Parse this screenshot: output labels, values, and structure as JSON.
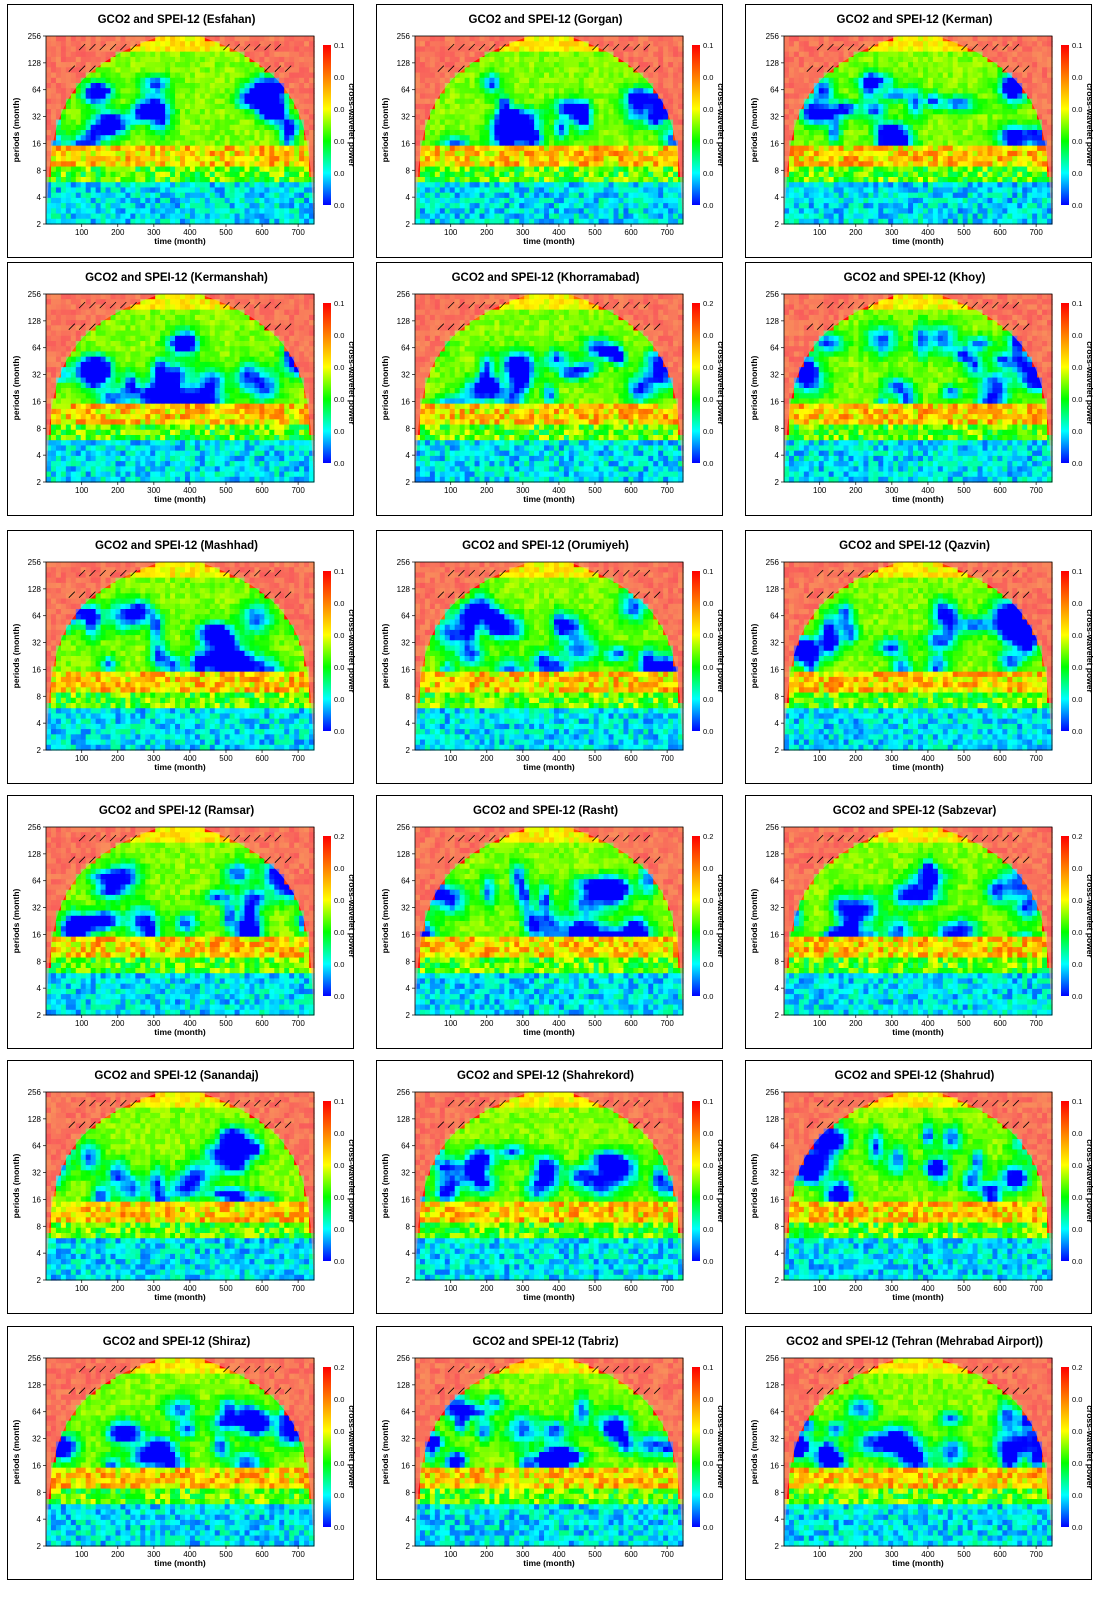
{
  "figure": {
    "charts_common": {
      "type": "heatmap",
      "xlabel": "time (month)",
      "ylabel": "periods (month)",
      "colorbar_label": "cross-wavelet power",
      "x_ticks": [
        "100",
        "200",
        "300",
        "400",
        "500",
        "600",
        "700"
      ],
      "y_ticks": [
        "2",
        "4",
        "8",
        "16",
        "32",
        "64",
        "128",
        "256"
      ],
      "xlim": [
        1,
        744
      ],
      "ylim": [
        2,
        256
      ],
      "y_scale": "log2",
      "colormap": [
        "#0000ff",
        "#00ffff",
        "#00ff00",
        "#ffff00",
        "#ff7f00",
        "#ff0000"
      ],
      "cone_of_influence_color": "#f4a6a6",
      "phase_arrow_color": "#000000"
    }
  },
  "chart_data": [
    {
      "title": "GCO2 and SPEI-12 (Esfahan)",
      "colorbar_ticks": [
        "0.1",
        "0.0",
        "0.0",
        "0.0",
        "0.0",
        "0.0"
      ]
    },
    {
      "title": "GCO2 and SPEI-12 (Gorgan)",
      "colorbar_ticks": [
        "0.1",
        "0.0",
        "0.0",
        "0.0",
        "0.0",
        "0.0"
      ]
    },
    {
      "title": "GCO2 and SPEI-12 (Kerman)",
      "colorbar_ticks": [
        "0.1",
        "0.0",
        "0.0",
        "0.0",
        "0.0",
        "0.0"
      ]
    },
    {
      "title": "GCO2 and SPEI-12 (Kermanshah)",
      "colorbar_ticks": [
        "0.1",
        "0.0",
        "0.0",
        "0.0",
        "0.0",
        "0.0"
      ]
    },
    {
      "title": "GCO2 and SPEI-12 (Khorramabad)",
      "colorbar_ticks": [
        "0.2",
        "0.0",
        "0.0",
        "0.0",
        "0.0",
        "0.0"
      ]
    },
    {
      "title": "GCO2 and SPEI-12 (Khoy)",
      "colorbar_ticks": [
        "0.1",
        "0.0",
        "0.0",
        "0.0",
        "0.0",
        "0.0"
      ]
    },
    {
      "title": "GCO2 and SPEI-12 (Mashhad)",
      "colorbar_ticks": [
        "0.1",
        "0.0",
        "0.0",
        "0.0",
        "0.0",
        "0.0"
      ]
    },
    {
      "title": "GCO2 and SPEI-12 (Orumiyeh)",
      "colorbar_ticks": [
        "0.1",
        "0.0",
        "0.0",
        "0.0",
        "0.0",
        "0.0"
      ]
    },
    {
      "title": "GCO2 and SPEI-12 (Qazvin)",
      "colorbar_ticks": [
        "0.1",
        "0.0",
        "0.0",
        "0.0",
        "0.0",
        "0.0"
      ]
    },
    {
      "title": "GCO2 and SPEI-12 (Ramsar)",
      "colorbar_ticks": [
        "0.2",
        "0.0",
        "0.0",
        "0.0",
        "0.0",
        "0.0"
      ]
    },
    {
      "title": "GCO2 and SPEI-12 (Rasht)",
      "colorbar_ticks": [
        "0.2",
        "0.0",
        "0.0",
        "0.0",
        "0.0",
        "0.0"
      ]
    },
    {
      "title": "GCO2 and SPEI-12 (Sabzevar)",
      "colorbar_ticks": [
        "0.2",
        "0.0",
        "0.0",
        "0.0",
        "0.0",
        "0.0"
      ]
    },
    {
      "title": "GCO2 and SPEI-12 (Sanandaj)",
      "colorbar_ticks": [
        "0.1",
        "0.0",
        "0.0",
        "0.0",
        "0.0",
        "0.0"
      ]
    },
    {
      "title": "GCO2 and SPEI-12 (Shahrekord)",
      "colorbar_ticks": [
        "0.1",
        "0.0",
        "0.0",
        "0.0",
        "0.0",
        "0.0"
      ]
    },
    {
      "title": "GCO2 and SPEI-12 (Shahrud)",
      "colorbar_ticks": [
        "0.1",
        "0.0",
        "0.0",
        "0.0",
        "0.0",
        "0.0"
      ]
    },
    {
      "title": "GCO2 and SPEI-12 (Shiraz)",
      "colorbar_ticks": [
        "0.2",
        "0.0",
        "0.0",
        "0.0",
        "0.0",
        "0.0"
      ]
    },
    {
      "title": "GCO2 and SPEI-12 (Tabriz)",
      "colorbar_ticks": [
        "0.1",
        "0.0",
        "0.0",
        "0.0",
        "0.0",
        "0.0"
      ]
    },
    {
      "title": "GCO2 and SPEI-12 (Tehran (Mehrabad Airport))",
      "colorbar_ticks": [
        "0.2",
        "0.0",
        "0.0",
        "0.0",
        "0.0",
        "0.0"
      ]
    }
  ]
}
